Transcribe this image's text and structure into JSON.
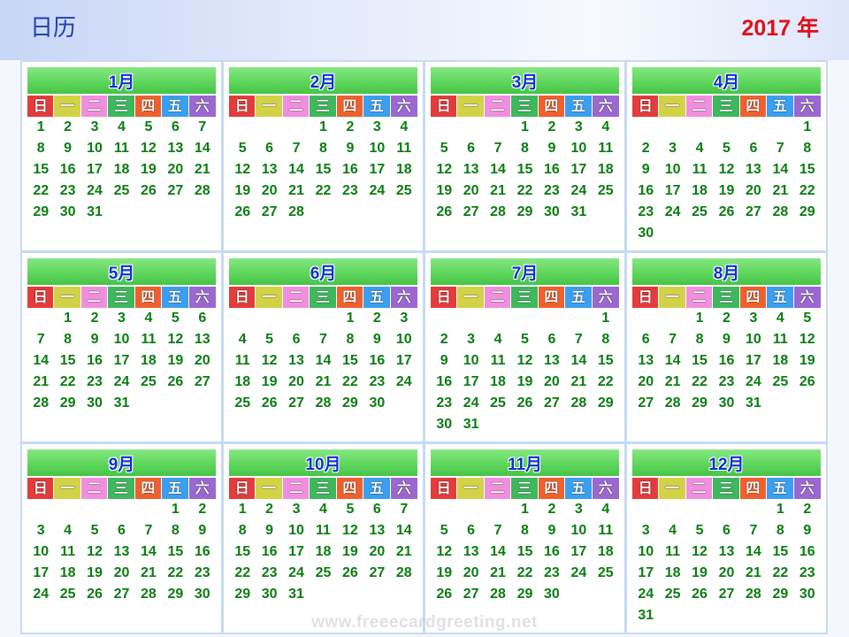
{
  "header": {
    "title": "日历",
    "year": "2017 年"
  },
  "weekdays": [
    "日",
    "一",
    "二",
    "三",
    "四",
    "五",
    "六"
  ],
  "colors": {
    "weekday_backgrounds": [
      "#e53b3b",
      "#d2d247",
      "#f28ede",
      "#3db85c",
      "#f0602c",
      "#3a9ff0",
      "#9b67d2"
    ],
    "date_text": "#0b7d12",
    "month_label": "#1030d0",
    "title": "#2040b0",
    "year": "#e0101a"
  },
  "months": [
    {
      "label": "1月",
      "weeks": [
        [
          "1",
          "2",
          "3",
          "4",
          "5",
          "6",
          "7"
        ],
        [
          "8",
          "9",
          "10",
          "11",
          "12",
          "13",
          "14"
        ],
        [
          "15",
          "16",
          "17",
          "18",
          "19",
          "20",
          "21"
        ],
        [
          "22",
          "23",
          "24",
          "25",
          "26",
          "27",
          "28"
        ],
        [
          "29",
          "30",
          "31"
        ]
      ]
    },
    {
      "label": "2月",
      "weeks": [
        [
          "",
          "",
          "",
          "1",
          "2",
          "3",
          "4"
        ],
        [
          "5",
          "6",
          "7",
          "8",
          "9",
          "10",
          "11"
        ],
        [
          "12",
          "13",
          "14",
          "15",
          "16",
          "17",
          "18"
        ],
        [
          "19",
          "20",
          "21",
          "22",
          "23",
          "24",
          "25"
        ],
        [
          "26",
          "27",
          "28"
        ]
      ]
    },
    {
      "label": "3月",
      "weeks": [
        [
          "",
          "",
          "",
          "1",
          "2",
          "3",
          "4"
        ],
        [
          "5",
          "6",
          "7",
          "8",
          "9",
          "10",
          "11"
        ],
        [
          "12",
          "13",
          "14",
          "15",
          "16",
          "17",
          "18"
        ],
        [
          "19",
          "20",
          "21",
          "22",
          "23",
          "24",
          "25"
        ],
        [
          "26",
          "27",
          "28",
          "29",
          "30",
          "31"
        ]
      ]
    },
    {
      "label": "4月",
      "weeks": [
        [
          "",
          "",
          "",
          "",
          "",
          "",
          "1"
        ],
        [
          "2",
          "3",
          "4",
          "5",
          "6",
          "7",
          "8"
        ],
        [
          "9",
          "10",
          "11",
          "12",
          "13",
          "14",
          "15"
        ],
        [
          "16",
          "17",
          "18",
          "19",
          "20",
          "21",
          "22"
        ],
        [
          "23",
          "24",
          "25",
          "26",
          "27",
          "28",
          "29"
        ],
        [
          "30"
        ]
      ]
    },
    {
      "label": "5月",
      "weeks": [
        [
          "",
          "1",
          "2",
          "3",
          "4",
          "5",
          "6"
        ],
        [
          "7",
          "8",
          "9",
          "10",
          "11",
          "12",
          "13"
        ],
        [
          "14",
          "15",
          "16",
          "17",
          "18",
          "19",
          "20"
        ],
        [
          "21",
          "22",
          "23",
          "24",
          "25",
          "26",
          "27"
        ],
        [
          "28",
          "29",
          "30",
          "31"
        ]
      ]
    },
    {
      "label": "6月",
      "weeks": [
        [
          "",
          "",
          "",
          "",
          "1",
          "2",
          "3"
        ],
        [
          "4",
          "5",
          "6",
          "7",
          "8",
          "9",
          "10"
        ],
        [
          "11",
          "12",
          "13",
          "14",
          "15",
          "16",
          "17"
        ],
        [
          "18",
          "19",
          "20",
          "21",
          "22",
          "23",
          "24"
        ],
        [
          "25",
          "26",
          "27",
          "28",
          "29",
          "30"
        ]
      ]
    },
    {
      "label": "7月",
      "weeks": [
        [
          "",
          "",
          "",
          "",
          "",
          "",
          "1"
        ],
        [
          "2",
          "3",
          "4",
          "5",
          "6",
          "7",
          "8"
        ],
        [
          "9",
          "10",
          "11",
          "12",
          "13",
          "14",
          "15"
        ],
        [
          "16",
          "17",
          "18",
          "19",
          "20",
          "21",
          "22"
        ],
        [
          "23",
          "24",
          "25",
          "26",
          "27",
          "28",
          "29"
        ],
        [
          "30",
          "31"
        ]
      ]
    },
    {
      "label": "8月",
      "weeks": [
        [
          "",
          "",
          "1",
          "2",
          "3",
          "4",
          "5"
        ],
        [
          "6",
          "7",
          "8",
          "9",
          "10",
          "11",
          "12"
        ],
        [
          "13",
          "14",
          "15",
          "16",
          "17",
          "18",
          "19"
        ],
        [
          "20",
          "21",
          "22",
          "23",
          "24",
          "25",
          "26"
        ],
        [
          "27",
          "28",
          "29",
          "30",
          "31"
        ]
      ]
    },
    {
      "label": "9月",
      "weeks": [
        [
          "",
          "",
          "",
          "",
          "",
          "1",
          "2"
        ],
        [
          "3",
          "4",
          "5",
          "6",
          "7",
          "8",
          "9"
        ],
        [
          "10",
          "11",
          "12",
          "13",
          "14",
          "15",
          "16"
        ],
        [
          "17",
          "18",
          "19",
          "20",
          "21",
          "22",
          "23"
        ],
        [
          "24",
          "25",
          "26",
          "27",
          "28",
          "29",
          "30"
        ]
      ]
    },
    {
      "label": "10月",
      "weeks": [
        [
          "1",
          "2",
          "3",
          "4",
          "5",
          "6",
          "7"
        ],
        [
          "8",
          "9",
          "10",
          "11",
          "12",
          "13",
          "14"
        ],
        [
          "15",
          "16",
          "17",
          "18",
          "19",
          "20",
          "21"
        ],
        [
          "22",
          "23",
          "24",
          "25",
          "26",
          "27",
          "28"
        ],
        [
          "29",
          "30",
          "31"
        ]
      ]
    },
    {
      "label": "11月",
      "weeks": [
        [
          "",
          "",
          "",
          "1",
          "2",
          "3",
          "4"
        ],
        [
          "5",
          "6",
          "7",
          "8",
          "9",
          "10",
          "11"
        ],
        [
          "12",
          "13",
          "14",
          "15",
          "16",
          "17",
          "18"
        ],
        [
          "19",
          "20",
          "21",
          "22",
          "23",
          "24",
          "25"
        ],
        [
          "26",
          "27",
          "28",
          "29",
          "30"
        ]
      ]
    },
    {
      "label": "12月",
      "weeks": [
        [
          "",
          "",
          "",
          "",
          "",
          "1",
          "2"
        ],
        [
          "3",
          "4",
          "5",
          "6",
          "7",
          "8",
          "9"
        ],
        [
          "10",
          "11",
          "12",
          "13",
          "14",
          "15",
          "16"
        ],
        [
          "17",
          "18",
          "19",
          "20",
          "21",
          "22",
          "23"
        ],
        [
          "24",
          "25",
          "26",
          "27",
          "28",
          "29",
          "30"
        ],
        [
          "31"
        ]
      ]
    }
  ],
  "watermark": "www.freeecardgreeting.net"
}
